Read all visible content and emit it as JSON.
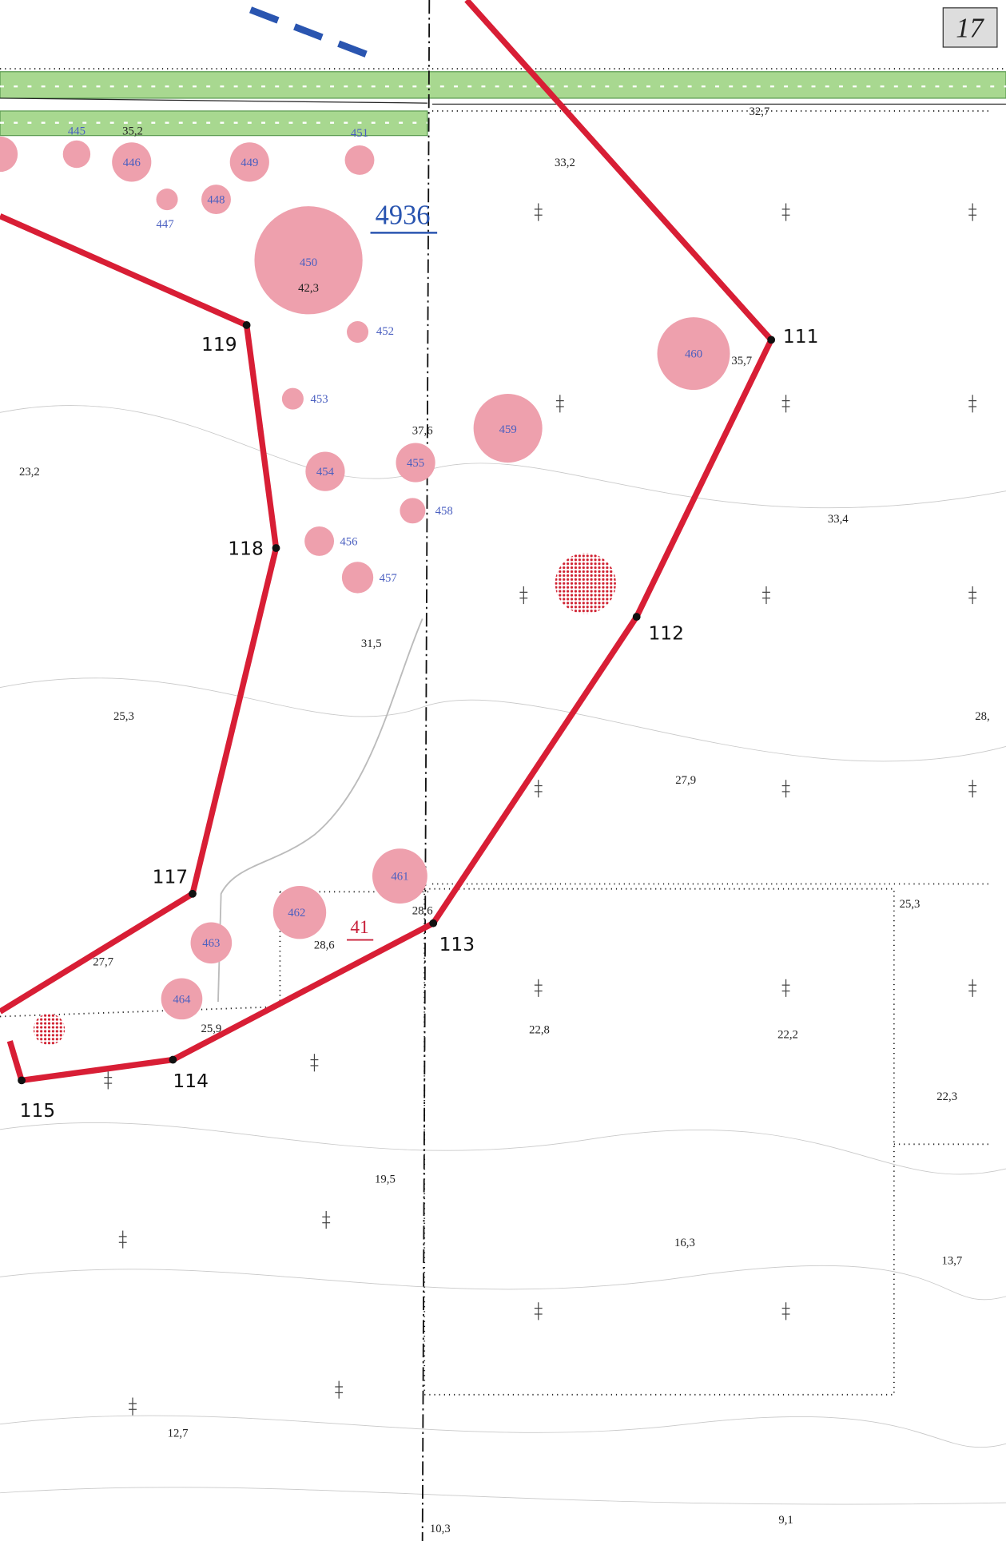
{
  "sheet": "17",
  "parcels": [
    "4936",
    "41"
  ],
  "points": [
    "111",
    "112",
    "113",
    "114",
    "115",
    "117",
    "118",
    "119"
  ],
  "trees": [
    "445",
    "446",
    "449",
    "451",
    "447",
    "448",
    "450",
    "452",
    "453",
    "459",
    "460",
    "454",
    "455",
    "458",
    "456",
    "457",
    "461",
    "462",
    "463",
    "464"
  ],
  "elevations": [
    "32,7",
    "35,2",
    "33,2",
    "42,3",
    "35,7",
    "37,6",
    "23,2",
    "33,4",
    "31,5",
    "25,3",
    "28,",
    "27,9",
    "28,6",
    "28,6",
    "25,3",
    "27,7",
    "25,9",
    "22,8",
    "22,2",
    "22,3",
    "19,5",
    "16,3",
    "13,7",
    "12,7",
    "10,3",
    "9,1"
  ]
}
